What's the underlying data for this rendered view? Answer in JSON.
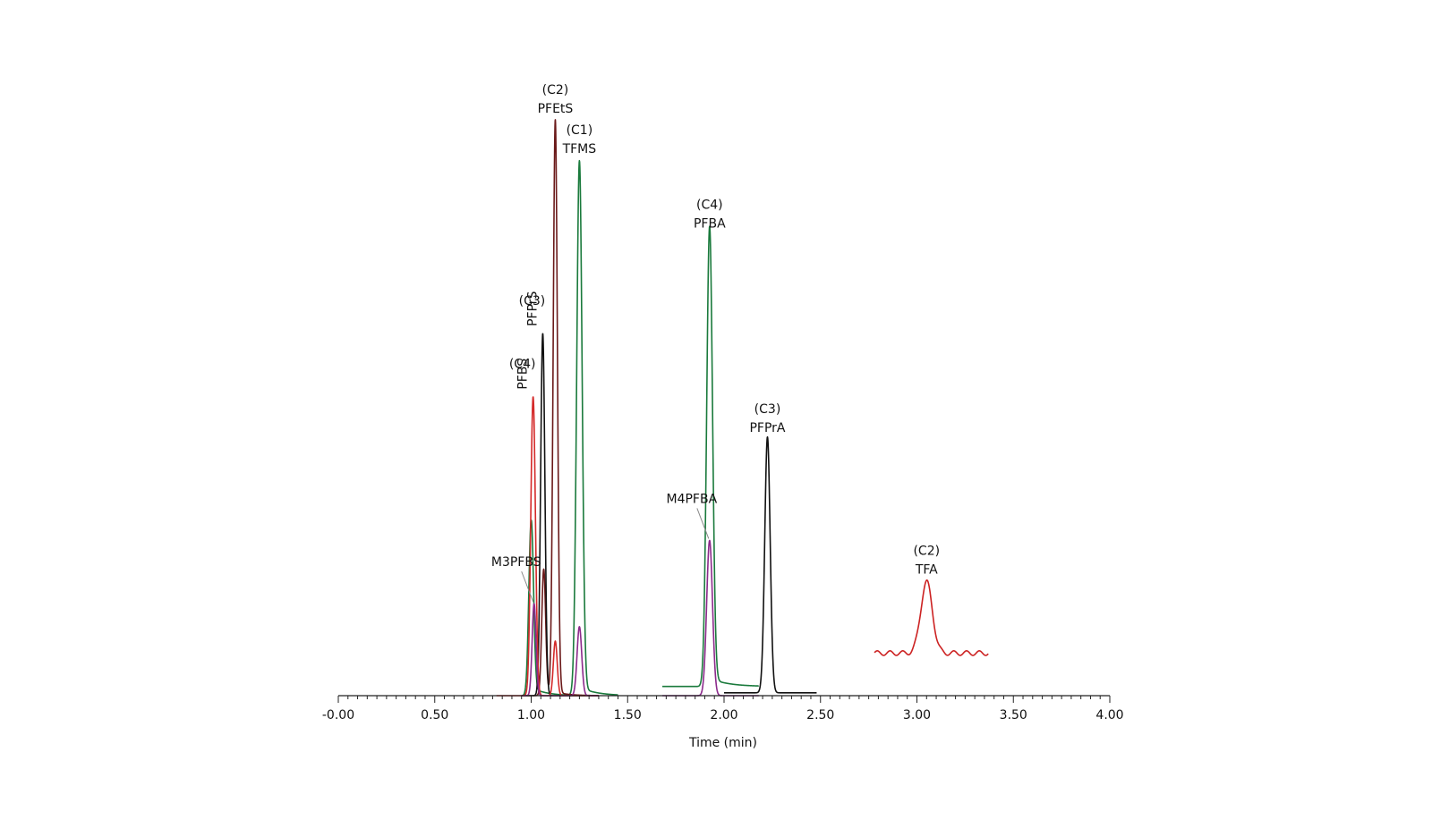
{
  "chart_data": {
    "type": "line",
    "title": "",
    "xlabel": "Time (min)",
    "ylabel": "",
    "xlim": [
      0.0,
      4.0
    ],
    "ylim": [
      0,
      100
    ],
    "grid": false,
    "x_ticks": [
      {
        "value": 0.0,
        "label": "-0.00"
      },
      {
        "value": 0.5,
        "label": "0.50"
      },
      {
        "value": 1.0,
        "label": "1.00"
      },
      {
        "value": 1.5,
        "label": "1.50"
      },
      {
        "value": 2.0,
        "label": "2.00"
      },
      {
        "value": 2.5,
        "label": "2.50"
      },
      {
        "value": 3.0,
        "label": "3.00"
      },
      {
        "value": 3.5,
        "label": "3.50"
      },
      {
        "value": 4.0,
        "label": "4.00"
      }
    ],
    "series": [
      {
        "color": "#1a7a3c",
        "range": [
          0.95,
          1.45
        ],
        "baseline": 0,
        "tail": 1.5,
        "peaks": [
          {
            "x": 1.0,
            "h": 30.5,
            "w": 0.012
          },
          {
            "x": 1.25,
            "h": 93,
            "w": 0.014
          }
        ]
      },
      {
        "color": "#6b1a1a",
        "range": [
          0.95,
          1.35
        ],
        "baseline": 0,
        "tail": 0.5,
        "peaks": [
          {
            "x": 1.065,
            "h": 22,
            "w": 0.01
          },
          {
            "x": 1.125,
            "h": 100,
            "w": 0.011
          }
        ]
      },
      {
        "color": "#111111",
        "range": [
          0.95,
          1.35
        ],
        "baseline": 0,
        "tail": 0,
        "peaks": [
          {
            "x": 1.06,
            "h": 63,
            "w": 0.011
          }
        ]
      },
      {
        "color": "#d42a2a",
        "range": [
          0.82,
          1.35
        ],
        "baseline": 0,
        "tail": 0,
        "peaks": [
          {
            "x": 1.01,
            "h": 52,
            "w": 0.012
          },
          {
            "x": 1.125,
            "h": 9.5,
            "w": 0.01
          }
        ]
      },
      {
        "color": "#8b2a8b",
        "range": [
          0.95,
          1.35
        ],
        "baseline": 0,
        "tail": 0,
        "peaks": [
          {
            "x": 1.015,
            "h": 16,
            "w": 0.01
          },
          {
            "x": 1.25,
            "h": 12,
            "w": 0.012
          }
        ]
      },
      {
        "color": "#1a7a3c",
        "range": [
          1.68,
          2.18
        ],
        "baseline": 1.6,
        "tail": 1.5,
        "peaks": [
          {
            "x": 1.925,
            "h": 80,
            "w": 0.015
          }
        ]
      },
      {
        "color": "#8b2a8b",
        "range": [
          1.68,
          2.18
        ],
        "baseline": 0,
        "tail": 0,
        "peaks": [
          {
            "x": 1.925,
            "h": 27,
            "w": 0.015
          }
        ]
      },
      {
        "color": "#111111",
        "range": [
          2.0,
          2.48
        ],
        "baseline": 0.5,
        "tail": 0,
        "peaks": [
          {
            "x": 2.225,
            "h": 44.5,
            "w": 0.014
          }
        ]
      },
      {
        "color": "#cc2222",
        "range": [
          2.78,
          3.37
        ],
        "baseline": 7.4,
        "tail": 0,
        "ripple": 0.4,
        "peaks": [
          {
            "x": 3.05,
            "h": 12.4,
            "w": 0.03
          }
        ]
      }
    ],
    "annotations": [
      {
        "lines": [
          "(C2)",
          "PFEtS"
        ],
        "x": 1.125,
        "y": 100,
        "rotate": false
      },
      {
        "lines": [
          "(C1)",
          "TFMS"
        ],
        "x": 1.25,
        "y": 93,
        "rotate": false
      },
      {
        "lines": [
          "(C4)",
          "PFBA"
        ],
        "x": 1.925,
        "y": 80,
        "rotate": false
      },
      {
        "lines": [
          "(C3)",
          "PFPrA"
        ],
        "x": 2.225,
        "y": 44.5,
        "rotate": false
      },
      {
        "lines": [
          "(C2)",
          "TFA"
        ],
        "x": 3.05,
        "y": 19.8,
        "rotate": false
      },
      {
        "lines": [
          "(C3)",
          "PFPrS"
        ],
        "x": 1.06,
        "y": 63,
        "rotate": true
      },
      {
        "lines": [
          "(C4)",
          "PFBS"
        ],
        "x": 1.01,
        "y": 52,
        "rotate": true
      }
    ],
    "callouts": [
      {
        "label": "M3PFBS",
        "x": 1.015,
        "y": 16
      },
      {
        "label": "M4PFBA",
        "x": 1.925,
        "y": 27
      }
    ]
  }
}
